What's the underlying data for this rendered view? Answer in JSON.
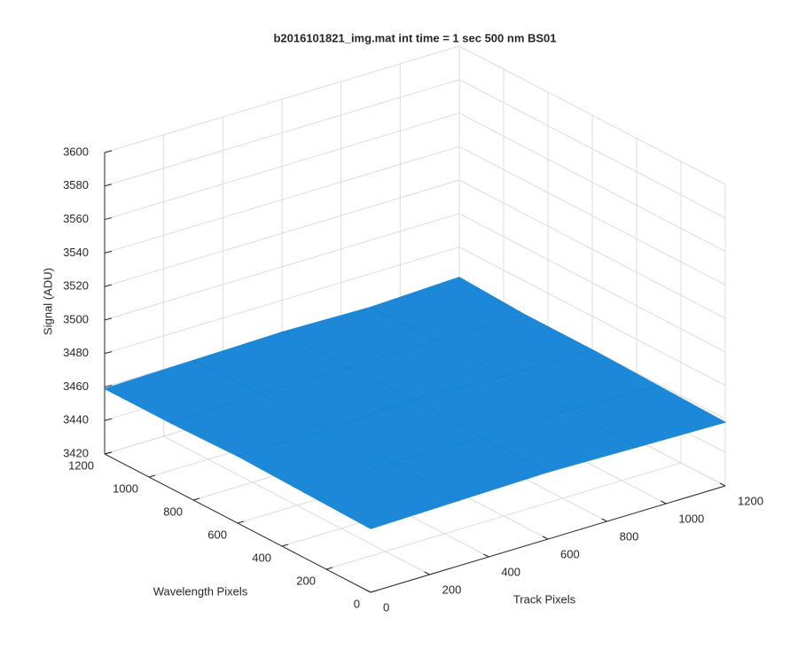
{
  "chart_data": {
    "type": "surface",
    "title": "b2016101821_img.mat int time = 1 sec  500 nm BS01",
    "xlabel": "Track Pixels",
    "ylabel": "Wavelength Pixels",
    "zlabel": "Signal (ADU)",
    "xlim": [
      0,
      1200
    ],
    "xticks": [
      0,
      200,
      400,
      600,
      800,
      1000,
      1200
    ],
    "ylim": [
      0,
      1200
    ],
    "yticks": [
      0,
      200,
      400,
      600,
      800,
      1000,
      1200
    ],
    "zlim": [
      3420,
      3600
    ],
    "zticks": [
      3420,
      3440,
      3460,
      3480,
      3500,
      3520,
      3540,
      3560,
      3580,
      3600
    ],
    "x": [
      0,
      300,
      600,
      900,
      1200
    ],
    "y": [
      0,
      300,
      600,
      900,
      1200
    ],
    "z": [
      [
        3458,
        3459,
        3460,
        3459,
        3458
      ],
      [
        3459,
        3461,
        3460,
        3461,
        3459
      ],
      [
        3460,
        3460,
        3462,
        3460,
        3460
      ],
      [
        3459,
        3461,
        3460,
        3461,
        3460
      ],
      [
        3459,
        3460,
        3461,
        3460,
        3462
      ]
    ],
    "color": "#1282d6",
    "grid": true
  }
}
